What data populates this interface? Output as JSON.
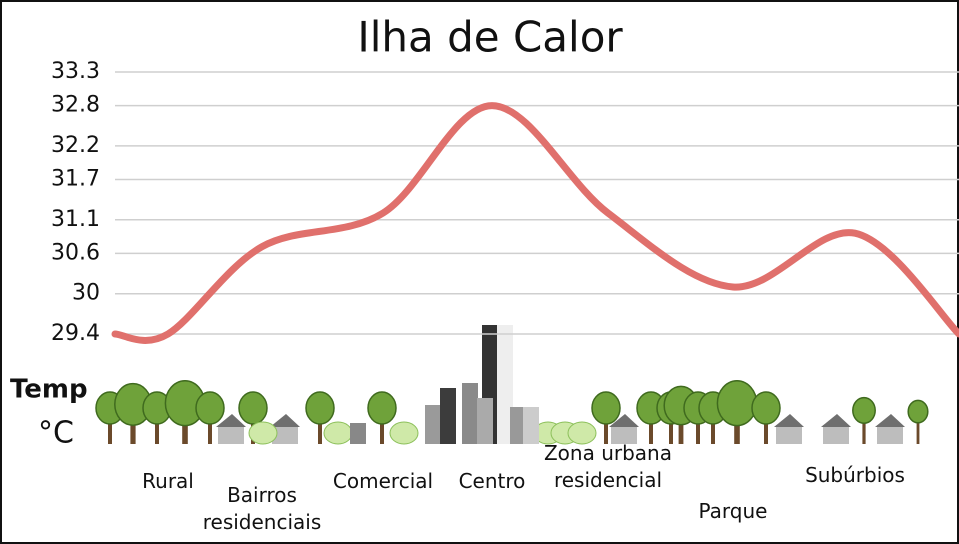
{
  "chart_data": {
    "type": "line",
    "title": "Ilha de Calor",
    "y_label": [
      "Temp",
      "°C"
    ],
    "categories": [
      null,
      "Rural",
      "Bairros residenciais",
      "Comercial",
      "Centro",
      "Zona urbana residencial",
      "Parque",
      "Subúrbios",
      null
    ],
    "values": [
      29.4,
      29.4,
      30.7,
      31.2,
      32.8,
      31.2,
      30.1,
      30.9,
      29.4
    ],
    "color": "#e0706c",
    "ylim": [
      29.4,
      33.3
    ],
    "yticks": [
      29.4,
      30.0,
      30.6,
      31.1,
      31.7,
      32.2,
      32.8,
      33.3
    ],
    "grid": true
  }
}
